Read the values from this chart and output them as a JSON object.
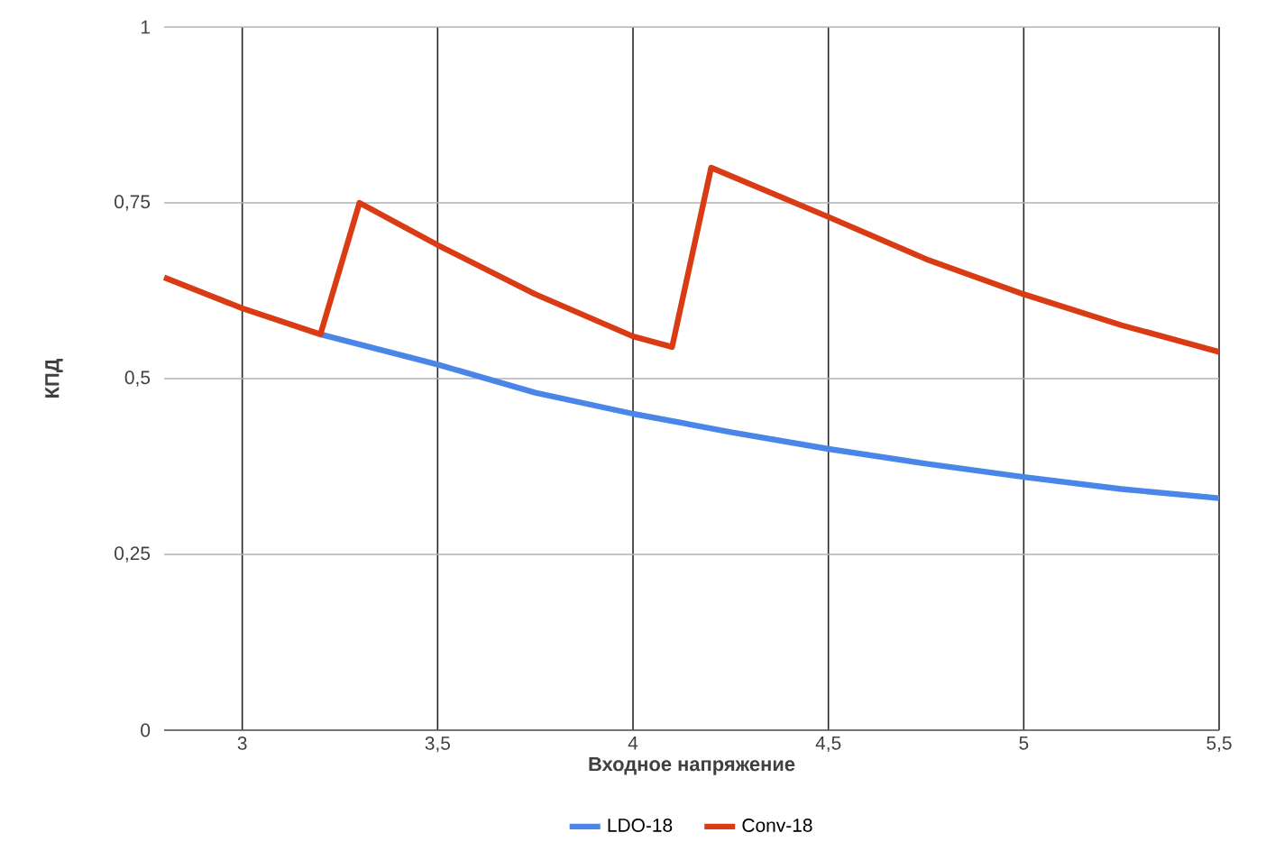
{
  "chart_data": {
    "type": "line",
    "xlabel": "Входное напряжение",
    "ylabel": "КПД",
    "xlim": [
      2.8,
      5.5
    ],
    "ylim": [
      0,
      1
    ],
    "xticks": [
      3,
      {
        "value": 3.5,
        "label": "3,5"
      },
      4,
      {
        "value": 4.5,
        "label": "4,5"
      },
      5,
      {
        "value": 5.5,
        "label": "5,5"
      }
    ],
    "yticks": [
      0,
      {
        "value": 0.25,
        "label": "0,25"
      },
      {
        "value": 0.5,
        "label": "0,5"
      },
      {
        "value": 0.75,
        "label": "0,75"
      },
      1
    ],
    "grid": true,
    "legend": "bottom",
    "line_style": "solid",
    "series": [
      {
        "name": "LDO-18",
        "color": "#4a86e8",
        "x": [
          3.2,
          3.5,
          3.75,
          4,
          4.25,
          4.5,
          4.75,
          5,
          5.25,
          5.5
        ],
        "values": [
          0.563,
          0.52,
          0.48,
          0.45,
          0.424,
          0.4,
          0.379,
          0.36,
          0.343,
          0.33
        ]
      },
      {
        "name": "Conv-18",
        "color": "#d93c15",
        "x": [
          2.8,
          3,
          3.2,
          3.3,
          3.5,
          3.75,
          4,
          4.1,
          4.2,
          4.5,
          4.75,
          5,
          5.25,
          5.5
        ],
        "values": [
          0.644,
          0.6,
          0.563,
          0.75,
          0.69,
          0.62,
          0.56,
          0.545,
          0.8,
          0.73,
          0.67,
          0.62,
          0.576,
          0.538
        ]
      }
    ]
  }
}
